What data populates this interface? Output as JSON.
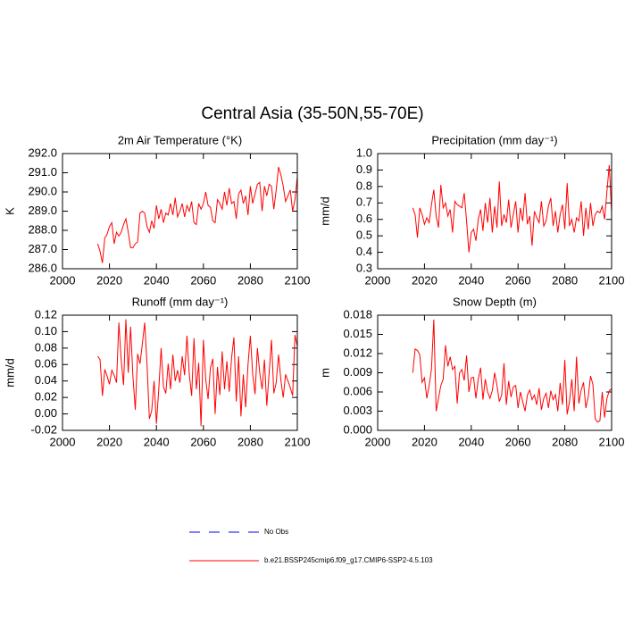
{
  "title": "Central Asia (35-50N,55-70E)",
  "legend": [
    {
      "name": "No Obs",
      "color": "#0000ff",
      "dash": true
    },
    {
      "name": "b.e21.BSSP245cmip6.f09_g17.CMIP6-SSP2-4.5.103",
      "color": "#ff0000",
      "dash": false
    }
  ],
  "chart_data": [
    {
      "type": "line",
      "title": "2m Air Temperature (°K)",
      "y_label": "K",
      "color": "#ff0000",
      "x": [
        2015,
        2016,
        2017,
        2018,
        2019,
        2020,
        2021,
        2022,
        2023,
        2024,
        2025,
        2026,
        2027,
        2028,
        2029,
        2030,
        2031,
        2032,
        2033,
        2034,
        2035,
        2036,
        2037,
        2038,
        2039,
        2040,
        2041,
        2042,
        2043,
        2044,
        2045,
        2046,
        2047,
        2048,
        2049,
        2050,
        2051,
        2052,
        2053,
        2054,
        2055,
        2056,
        2057,
        2058,
        2059,
        2060,
        2061,
        2062,
        2063,
        2064,
        2065,
        2066,
        2067,
        2068,
        2069,
        2070,
        2071,
        2072,
        2073,
        2074,
        2075,
        2076,
        2077,
        2078,
        2079,
        2080,
        2081,
        2082,
        2083,
        2084,
        2085,
        2086,
        2087,
        2088,
        2089,
        2090,
        2091,
        2092,
        2093,
        2094,
        2095,
        2096,
        2097,
        2098,
        2099,
        2100
      ],
      "values": [
        287.3,
        286.9,
        286.3,
        287.6,
        287.8,
        288.2,
        288.4,
        287.3,
        287.9,
        287.7,
        287.9,
        288.3,
        288.6,
        287.9,
        287.1,
        287.1,
        287.3,
        287.4,
        288.9,
        289.0,
        288.9,
        288.2,
        287.9,
        288.5,
        288.1,
        289.3,
        288.6,
        289.1,
        288.4,
        288.9,
        288.8,
        289.4,
        288.8,
        289.7,
        288.7,
        289.0,
        289.4,
        288.7,
        289.3,
        289.0,
        289.5,
        288.4,
        288.3,
        289.4,
        289.1,
        289.4,
        290.0,
        289.3,
        289.2,
        288.5,
        288.4,
        289.6,
        289.4,
        289.1,
        290.0,
        289.3,
        290.2,
        289.4,
        289.5,
        288.6,
        289.9,
        290.1,
        289.4,
        289.8,
        288.8,
        290.3,
        289.4,
        289.9,
        290.4,
        290.5,
        289.0,
        290.3,
        289.8,
        290.4,
        290.3,
        289.1,
        290.1,
        291.3,
        290.9,
        290.3,
        289.5,
        289.8,
        290.1,
        289.0,
        289.6,
        290.8
      ],
      "xlim": [
        2000,
        2100
      ],
      "xticks": [
        2000,
        2020,
        2040,
        2060,
        2080,
        2100
      ],
      "ylim": [
        286,
        292
      ],
      "yticks": [
        {
          "value": 286,
          "label": "286.0"
        },
        {
          "value": 287,
          "label": "287.0"
        },
        {
          "value": 288,
          "label": "288.0"
        },
        {
          "value": 289,
          "label": "289.0"
        },
        {
          "value": 290,
          "label": "290.0"
        },
        {
          "value": 291,
          "label": "291.0"
        },
        {
          "value": 292,
          "label": "292.0"
        }
      ]
    },
    {
      "type": "line",
      "title": "Precipitation (mm day⁻¹)",
      "y_label": "mm/d",
      "color": "#ff0000",
      "x": [
        2015,
        2016,
        2017,
        2018,
        2019,
        2020,
        2021,
        2022,
        2023,
        2024,
        2025,
        2026,
        2027,
        2028,
        2029,
        2030,
        2031,
        2032,
        2033,
        2034,
        2035,
        2036,
        2037,
        2038,
        2039,
        2040,
        2041,
        2042,
        2043,
        2044,
        2045,
        2046,
        2047,
        2048,
        2049,
        2050,
        2051,
        2052,
        2053,
        2054,
        2055,
        2056,
        2057,
        2058,
        2059,
        2060,
        2061,
        2062,
        2063,
        2064,
        2065,
        2066,
        2067,
        2068,
        2069,
        2070,
        2071,
        2072,
        2073,
        2074,
        2075,
        2076,
        2077,
        2078,
        2079,
        2080,
        2081,
        2082,
        2083,
        2084,
        2085,
        2086,
        2087,
        2088,
        2089,
        2090,
        2091,
        2092,
        2093,
        2094,
        2095,
        2096,
        2097,
        2098,
        2099,
        2100
      ],
      "values": [
        0.67,
        0.63,
        0.49,
        0.67,
        0.63,
        0.57,
        0.61,
        0.58,
        0.69,
        0.78,
        0.62,
        0.55,
        0.81,
        0.67,
        0.7,
        0.62,
        0.66,
        0.52,
        0.71,
        0.69,
        0.68,
        0.67,
        0.76,
        0.59,
        0.4,
        0.52,
        0.54,
        0.47,
        0.6,
        0.66,
        0.53,
        0.7,
        0.58,
        0.73,
        0.52,
        0.68,
        0.55,
        0.83,
        0.56,
        0.63,
        0.58,
        0.72,
        0.55,
        0.63,
        0.71,
        0.52,
        0.67,
        0.59,
        0.76,
        0.57,
        0.62,
        0.44,
        0.65,
        0.61,
        0.58,
        0.71,
        0.56,
        0.59,
        0.68,
        0.73,
        0.56,
        0.65,
        0.52,
        0.63,
        0.69,
        0.54,
        0.82,
        0.56,
        0.6,
        0.52,
        0.61,
        0.59,
        0.71,
        0.5,
        0.67,
        0.54,
        0.7,
        0.56,
        0.63,
        0.65,
        0.64,
        0.68,
        0.6,
        0.77,
        0.93,
        0.64
      ],
      "xlim": [
        2000,
        2100
      ],
      "xticks": [
        2000,
        2020,
        2040,
        2060,
        2080,
        2100
      ],
      "ylim": [
        0.3,
        1.0
      ],
      "yticks": [
        0.3,
        0.4,
        0.5,
        0.6,
        0.7,
        0.8,
        0.9,
        {
          "value": 1.0,
          "label": "1.0"
        }
      ]
    },
    {
      "type": "line",
      "title": "Runoff (mm day⁻¹)",
      "y_label": "mm/d",
      "color": "#ff0000",
      "x": [
        2015,
        2016,
        2017,
        2018,
        2019,
        2020,
        2021,
        2022,
        2023,
        2024,
        2025,
        2026,
        2027,
        2028,
        2029,
        2030,
        2031,
        2032,
        2033,
        2034,
        2035,
        2036,
        2037,
        2038,
        2039,
        2040,
        2041,
        2042,
        2043,
        2044,
        2045,
        2046,
        2047,
        2048,
        2049,
        2050,
        2051,
        2052,
        2053,
        2054,
        2055,
        2056,
        2057,
        2058,
        2059,
        2060,
        2061,
        2062,
        2063,
        2064,
        2065,
        2066,
        2067,
        2068,
        2069,
        2070,
        2071,
        2072,
        2073,
        2074,
        2075,
        2076,
        2077,
        2078,
        2079,
        2080,
        2081,
        2082,
        2083,
        2084,
        2085,
        2086,
        2087,
        2088,
        2089,
        2090,
        2091,
        2092,
        2093,
        2094,
        2095,
        2096,
        2097,
        2098,
        2099,
        2100
      ],
      "values": [
        0.07,
        0.066,
        0.022,
        0.054,
        0.046,
        0.036,
        0.053,
        0.047,
        0.038,
        0.111,
        0.065,
        0.035,
        0.115,
        0.05,
        0.106,
        0.045,
        0.005,
        0.073,
        0.061,
        0.085,
        0.111,
        0.06,
        -0.006,
        0.004,
        0.04,
        -0.012,
        0.03,
        0.08,
        0.033,
        0.025,
        0.061,
        0.03,
        0.072,
        0.04,
        0.053,
        0.038,
        0.07,
        0.047,
        0.095,
        0.048,
        0.022,
        0.092,
        0.03,
        0.062,
        -0.015,
        0.09,
        0.042,
        0.018,
        0.056,
        0.067,
        0.0,
        0.057,
        0.023,
        0.076,
        0.03,
        0.064,
        0.027,
        0.068,
        0.093,
        0.015,
        0.07,
        -0.003,
        0.048,
        0.008,
        0.06,
        0.095,
        0.048,
        0.024,
        0.08,
        0.05,
        0.03,
        0.066,
        0.01,
        0.05,
        0.09,
        0.025,
        0.038,
        0.072,
        0.041,
        0.02,
        0.048,
        0.04,
        0.032,
        0.022,
        0.096,
        0.082
      ],
      "xlim": [
        2000,
        2100
      ],
      "xticks": [
        2000,
        2020,
        2040,
        2060,
        2080,
        2100
      ],
      "ylim": [
        -0.02,
        0.12
      ],
      "yticks": [
        -0.02,
        {
          "value": 0,
          "label": "0.00"
        },
        0.02,
        0.04,
        0.06,
        0.08,
        {
          "value": 0.1,
          "label": "0.10"
        },
        0.12
      ]
    },
    {
      "type": "line",
      "title": "Snow Depth (m)",
      "y_label": "m",
      "color": "#ff0000",
      "x": [
        2015,
        2016,
        2017,
        2018,
        2019,
        2020,
        2021,
        2022,
        2023,
        2024,
        2025,
        2026,
        2027,
        2028,
        2029,
        2030,
        2031,
        2032,
        2033,
        2034,
        2035,
        2036,
        2037,
        2038,
        2039,
        2040,
        2041,
        2042,
        2043,
        2044,
        2045,
        2046,
        2047,
        2048,
        2049,
        2050,
        2051,
        2052,
        2053,
        2054,
        2055,
        2056,
        2057,
        2058,
        2059,
        2060,
        2061,
        2062,
        2063,
        2064,
        2065,
        2066,
        2067,
        2068,
        2069,
        2070,
        2071,
        2072,
        2073,
        2074,
        2075,
        2076,
        2077,
        2078,
        2079,
        2080,
        2081,
        2082,
        2083,
        2084,
        2085,
        2086,
        2087,
        2088,
        2089,
        2090,
        2091,
        2092,
        2093,
        2094,
        2095,
        2096,
        2097,
        2098,
        2099,
        2100
      ],
      "values": [
        0.009,
        0.0127,
        0.0125,
        0.0118,
        0.0075,
        0.0082,
        0.005,
        0.007,
        0.0096,
        0.0173,
        0.003,
        0.005,
        0.007,
        0.008,
        0.0133,
        0.01,
        0.0115,
        0.0095,
        0.01,
        0.0042,
        0.009,
        0.0095,
        0.0078,
        0.0117,
        0.006,
        0.0082,
        0.0083,
        0.005,
        0.008,
        0.0098,
        0.0048,
        0.008,
        0.006,
        0.005,
        0.0062,
        0.009,
        0.007,
        0.0045,
        0.0055,
        0.0105,
        0.004,
        0.0077,
        0.0052,
        0.0068,
        0.007,
        0.0035,
        0.006,
        0.0045,
        0.003,
        0.0055,
        0.0063,
        0.0048,
        0.0055,
        0.004,
        0.0066,
        0.0032,
        0.005,
        0.0058,
        0.0035,
        0.0062,
        0.0048,
        0.0056,
        0.003,
        0.0074,
        0.004,
        0.011,
        0.0025,
        0.0045,
        0.008,
        0.003,
        0.0115,
        0.0042,
        0.0063,
        0.0075,
        0.0035,
        0.0052,
        0.0085,
        0.0072,
        0.0018,
        0.0013,
        0.0015,
        0.006,
        0.002,
        0.005,
        0.0062,
        0.0065
      ],
      "xlim": [
        2000,
        2100
      ],
      "xticks": [
        2000,
        2020,
        2040,
        2060,
        2080,
        2100
      ],
      "ylim": [
        0,
        0.018
      ],
      "yticks": [
        {
          "value": 0,
          "label": "0.000"
        },
        0.003,
        0.006,
        0.009,
        0.012,
        0.015,
        0.018
      ]
    }
  ]
}
